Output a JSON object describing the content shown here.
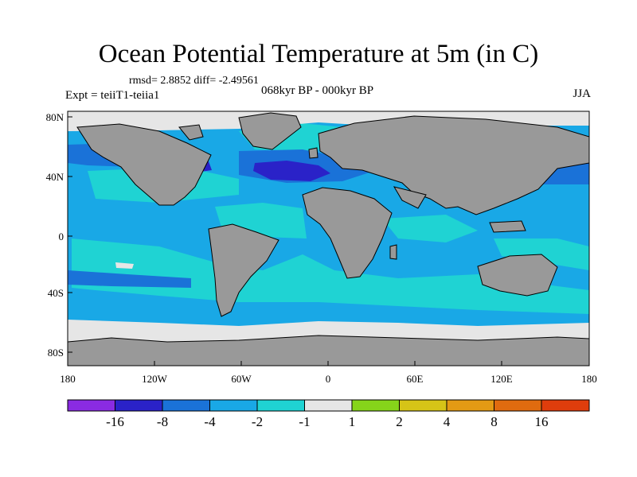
{
  "title": "Ocean Potential Temperature at 5m (in C)",
  "stats": "rmsd= 2.8852 diff= -2.49561",
  "experiment": "Expt = teiiT1-teiia1",
  "subtitle": "068kyr BP - 000kyr BP",
  "season": "JJA",
  "lat_ticks": [
    "80N",
    "40N",
    "0",
    "40S",
    "80S"
  ],
  "lon_ticks": [
    "180",
    "120W",
    "60W",
    "0",
    "60E",
    "120E",
    "180"
  ],
  "colorbar": {
    "labels": [
      "-16",
      "-8",
      "-4",
      "-2",
      "-1",
      "1",
      "2",
      "4",
      "8",
      "16"
    ],
    "colors": [
      "#8a2be2",
      "#2a22c8",
      "#1a72d8",
      "#19a8e6",
      "#1fd3d3",
      "#e6e6e6",
      "#86d41a",
      "#d6c417",
      "#e39a14",
      "#e06b0f",
      "#df3d0c"
    ]
  },
  "colors": {
    "land": "#999999",
    "polar_ice": "#e6e6e6",
    "ocean_base": "#19a8e6",
    "cool_anomaly": "#1fd3d3",
    "strong_cool": "#2a22c8",
    "moderate_cool": "#1a72d8"
  }
}
